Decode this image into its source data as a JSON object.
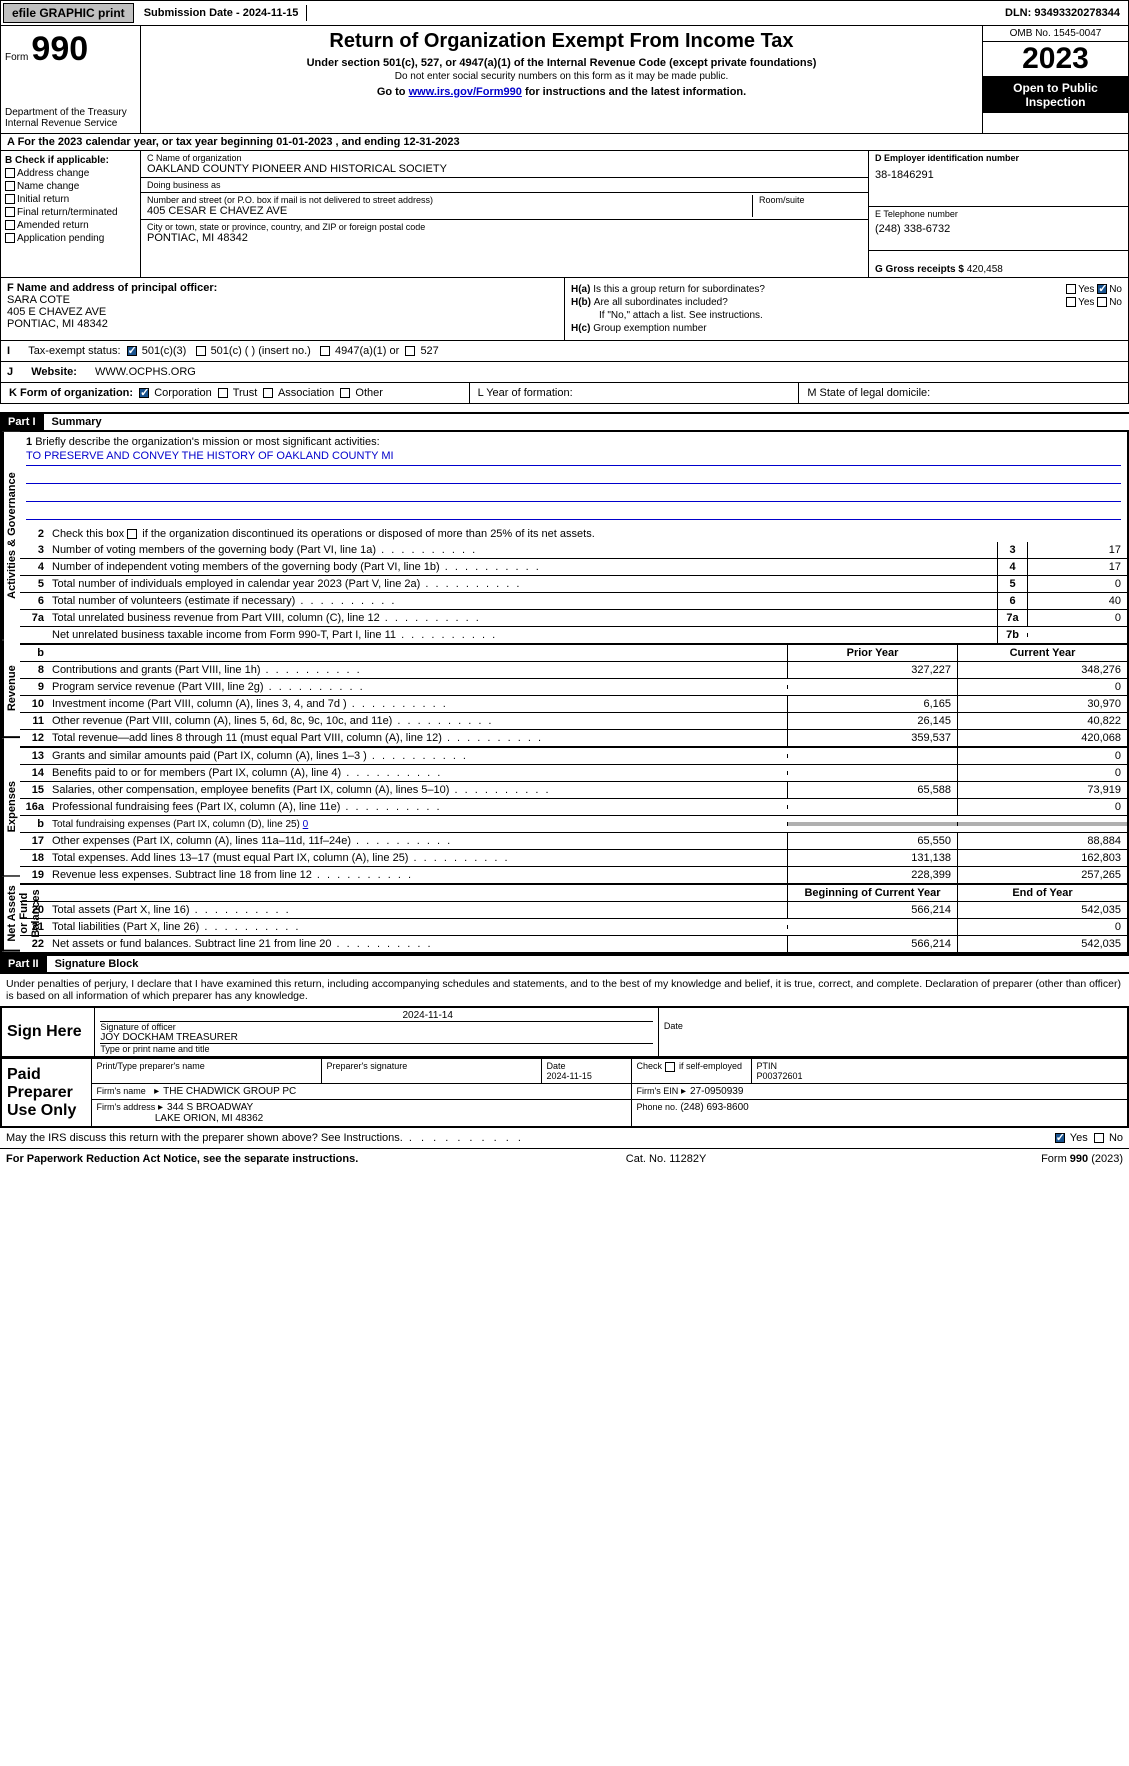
{
  "topbar": {
    "efile": "efile GRAPHIC print",
    "submission": "Submission Date - 2024-11-15",
    "dln": "DLN: 93493320278344"
  },
  "header": {
    "form_word": "Form",
    "form_num": "990",
    "title": "Return of Organization Exempt From Income Tax",
    "sub1": "Under section 501(c), 527, or 4947(a)(1) of the Internal Revenue Code (except private foundations)",
    "sub2": "Do not enter social security numbers on this form as it may be made public.",
    "sub3": "Go to www.irs.gov/Form990 for instructions and the latest information.",
    "link": "www.irs.gov/Form990",
    "dept": "Department of the Treasury\nInternal Revenue Service",
    "omb": "OMB No. 1545-0047",
    "year": "2023",
    "open": "Open to Public Inspection"
  },
  "row_a": "A For the 2023 calendar year, or tax year beginning 01-01-2023   , and ending 12-31-2023",
  "col_b": {
    "hdr": "B Check if applicable:",
    "opts": [
      "Address change",
      "Name change",
      "Initial return",
      "Final return/terminated",
      "Amended return",
      "Application pending"
    ]
  },
  "c": {
    "lbl_name": "C Name of organization",
    "name": "OAKLAND COUNTY PIONEER AND HISTORICAL SOCIETY",
    "dba_lbl": "Doing business as",
    "dba": "",
    "addr_lbl": "Number and street (or P.O. box if mail is not delivered to street address)",
    "room_lbl": "Room/suite",
    "addr": "405 CESAR E CHAVEZ AVE",
    "city_lbl": "City or town, state or province, country, and ZIP or foreign postal code",
    "city": "PONTIAC, MI  48342"
  },
  "d": {
    "lbl": "D Employer identification number",
    "val": "38-1846291"
  },
  "e": {
    "lbl": "E Telephone number",
    "val": "(248) 338-6732"
  },
  "g": {
    "lbl": "G Gross receipts $",
    "val": "420,458"
  },
  "f": {
    "lbl": "F  Name and address of principal officer:",
    "name": "SARA COTE",
    "l1": "405 E CHAVEZ AVE",
    "l2": "PONTIAC, MI  48342"
  },
  "h": {
    "a": "Is this a group return for subordinates?",
    "b": "Are all subordinates included?",
    "b2": "If \"No,\" attach a list. See instructions.",
    "c": "Group exemption number",
    "yes": "Yes",
    "no": "No"
  },
  "i": {
    "lbl": "Tax-exempt status:",
    "o1": "501(c)(3)",
    "o2": "501(c) (  ) (insert no.)",
    "o3": "4947(a)(1) or",
    "o4": "527"
  },
  "j": {
    "lbl": "Website:",
    "val": "WWW.OCPHS.ORG"
  },
  "k": {
    "lbl": "K Form of organization:",
    "o1": "Corporation",
    "o2": "Trust",
    "o3": "Association",
    "o4": "Other"
  },
  "l": "L Year of formation:",
  "m": "M State of legal domicile:",
  "part1": {
    "hdr": "Part I",
    "title": "Summary"
  },
  "s1": {
    "lbl": "Briefly describe the organization's mission or most significant activities:",
    "val": "TO PRESERVE AND CONVEY THE HISTORY OF OAKLAND COUNTY MI"
  },
  "s2": "Check this box      if the organization discontinued its operations or disposed of more than 25% of its net assets.",
  "govrows": [
    {
      "n": "3",
      "t": "Number of voting members of the governing body (Part VI, line 1a)",
      "bn": "3",
      "bv": "17"
    },
    {
      "n": "4",
      "t": "Number of independent voting members of the governing body (Part VI, line 1b)",
      "bn": "4",
      "bv": "17"
    },
    {
      "n": "5",
      "t": "Total number of individuals employed in calendar year 2023 (Part V, line 2a)",
      "bn": "5",
      "bv": "0"
    },
    {
      "n": "6",
      "t": "Total number of volunteers (estimate if necessary)",
      "bn": "6",
      "bv": "40"
    },
    {
      "n": "7a",
      "t": "Total unrelated business revenue from Part VIII, column (C), line 12",
      "bn": "7a",
      "bv": "0"
    },
    {
      "n": "",
      "t": "Net unrelated business taxable income from Form 990-T, Part I, line 11",
      "bn": "7b",
      "bv": ""
    }
  ],
  "rev_hdr": {
    "b": "b",
    "py": "Prior Year",
    "cy": "Current Year"
  },
  "revrows": [
    {
      "n": "8",
      "t": "Contributions and grants (Part VIII, line 1h)",
      "c1": "327,227",
      "c2": "348,276"
    },
    {
      "n": "9",
      "t": "Program service revenue (Part VIII, line 2g)",
      "c1": "",
      "c2": "0"
    },
    {
      "n": "10",
      "t": "Investment income (Part VIII, column (A), lines 3, 4, and 7d )",
      "c1": "6,165",
      "c2": "30,970"
    },
    {
      "n": "11",
      "t": "Other revenue (Part VIII, column (A), lines 5, 6d, 8c, 9c, 10c, and 11e)",
      "c1": "26,145",
      "c2": "40,822"
    },
    {
      "n": "12",
      "t": "Total revenue—add lines 8 through 11 (must equal Part VIII, column (A), line 12)",
      "c1": "359,537",
      "c2": "420,068"
    }
  ],
  "exprows": [
    {
      "n": "13",
      "t": "Grants and similar amounts paid (Part IX, column (A), lines 1–3 )",
      "c1": "",
      "c2": "0"
    },
    {
      "n": "14",
      "t": "Benefits paid to or for members (Part IX, column (A), line 4)",
      "c1": "",
      "c2": "0"
    },
    {
      "n": "15",
      "t": "Salaries, other compensation, employee benefits (Part IX, column (A), lines 5–10)",
      "c1": "65,588",
      "c2": "73,919"
    },
    {
      "n": "16a",
      "t": "Professional fundraising fees (Part IX, column (A), line 11e)",
      "c1": "",
      "c2": "0"
    },
    {
      "n": "b",
      "t": "Total fundraising expenses (Part IX, column (D), line 25) 0",
      "shaded": true
    },
    {
      "n": "17",
      "t": "Other expenses (Part IX, column (A), lines 11a–11d, 11f–24e)",
      "c1": "65,550",
      "c2": "88,884"
    },
    {
      "n": "18",
      "t": "Total expenses. Add lines 13–17 (must equal Part IX, column (A), line 25)",
      "c1": "131,138",
      "c2": "162,803"
    },
    {
      "n": "19",
      "t": "Revenue less expenses. Subtract line 18 from line 12",
      "c1": "228,399",
      "c2": "257,265"
    }
  ],
  "na_hdr": {
    "py": "Beginning of Current Year",
    "cy": "End of Year"
  },
  "narows": [
    {
      "n": "20",
      "t": "Total assets (Part X, line 16)",
      "c1": "566,214",
      "c2": "542,035"
    },
    {
      "n": "21",
      "t": "Total liabilities (Part X, line 26)",
      "c1": "",
      "c2": "0"
    },
    {
      "n": "22",
      "t": "Net assets or fund balances. Subtract line 21 from line 20",
      "c1": "566,214",
      "c2": "542,035"
    }
  ],
  "vtabs": {
    "gov": "Activities & Governance",
    "rev": "Revenue",
    "exp": "Expenses",
    "na": "Net Assets or Fund Balances"
  },
  "part2": {
    "hdr": "Part II",
    "title": "Signature Block"
  },
  "sig_txt": "Under penalties of perjury, I declare that I have examined this return, including accompanying schedules and statements, and to the best of my knowledge and belief, it is true, correct, and complete. Declaration of preparer (other than officer) is based on all information of which preparer has any knowledge.",
  "sign": {
    "side": "Sign Here",
    "l1": "Signature of officer",
    "l2": "JOY DOCKHAM  TREASURER",
    "l3": "Type or print name and title",
    "date_lbl": "Date",
    "date": "2024-11-14"
  },
  "prep": {
    "side": "Paid Preparer Use Only",
    "h1": "Print/Type preparer's name",
    "h2": "Preparer's signature",
    "h3": "Date",
    "h3v": "2024-11-15",
    "h4": "Check        if self-employed",
    "h5": "PTIN",
    "h5v": "P00372601",
    "firm_lbl": "Firm's name",
    "firm": "THE CHADWICK GROUP PC",
    "ein_lbl": "Firm's EIN",
    "ein": "27-0950939",
    "addr_lbl": "Firm's address",
    "addr1": "344 S BROADWAY",
    "addr2": "LAKE ORION, MI  48362",
    "phone_lbl": "Phone no.",
    "phone": "(248) 693-8600"
  },
  "may": {
    "t": "May the IRS discuss this return with the preparer shown above? See Instructions.",
    "yes": "Yes",
    "no": "No"
  },
  "ftr": {
    "l": "For Paperwork Reduction Act Notice, see the separate instructions.",
    "c": "Cat. No. 11282Y",
    "r": "Form 990 (2023)"
  }
}
